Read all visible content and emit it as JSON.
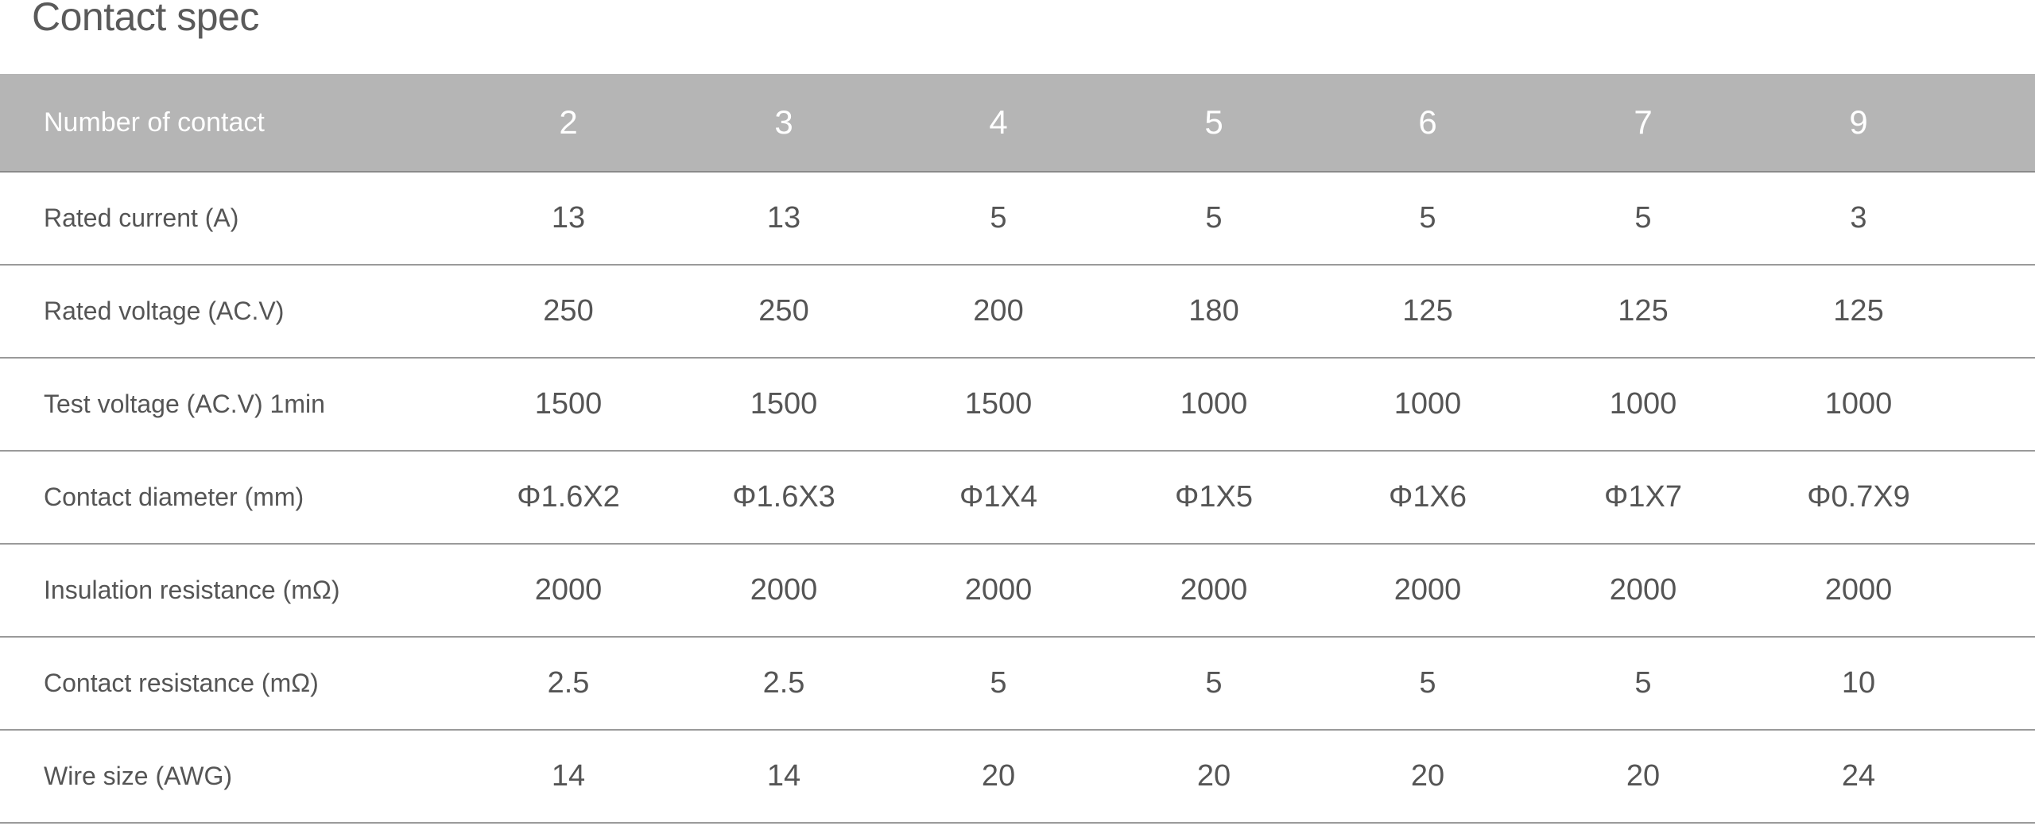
{
  "title": "Contact spec",
  "header": {
    "label": "Number of contact",
    "values": [
      "2",
      "3",
      "4",
      "5",
      "6",
      "7",
      "9"
    ]
  },
  "rows": [
    {
      "label": "Rated current (A)",
      "values": [
        "13",
        "13",
        "5",
        "5",
        "5",
        "5",
        "3"
      ]
    },
    {
      "label": "Rated voltage (AC.V)",
      "values": [
        "250",
        "250",
        "200",
        "180",
        "125",
        "125",
        "125"
      ]
    },
    {
      "label": "Test voltage (AC.V) 1min",
      "values": [
        "1500",
        "1500",
        "1500",
        "1000",
        "1000",
        "1000",
        "1000"
      ]
    },
    {
      "label": "Contact diameter (mm)",
      "values": [
        "Φ1.6X2",
        "Φ1.6X3",
        "Φ1X4",
        "Φ1X5",
        "Φ1X6",
        "Φ1X7",
        "Φ0.7X9"
      ]
    },
    {
      "label": "Insulation resistance (mΩ)",
      "values": [
        "2000",
        "2000",
        "2000",
        "2000",
        "2000",
        "2000",
        "2000"
      ]
    },
    {
      "label": "Contact resistance (mΩ)",
      "values": [
        "2.5",
        "2.5",
        "5",
        "5",
        "5",
        "5",
        "10"
      ]
    },
    {
      "label": "Wire size (AWG)",
      "values": [
        "14",
        "14",
        "20",
        "20",
        "20",
        "20",
        "24"
      ]
    }
  ],
  "colors": {
    "header_bg": "#b5b5b5",
    "header_text": "#ffffff",
    "body_text": "#555555",
    "divider": "#9a9a9a"
  }
}
